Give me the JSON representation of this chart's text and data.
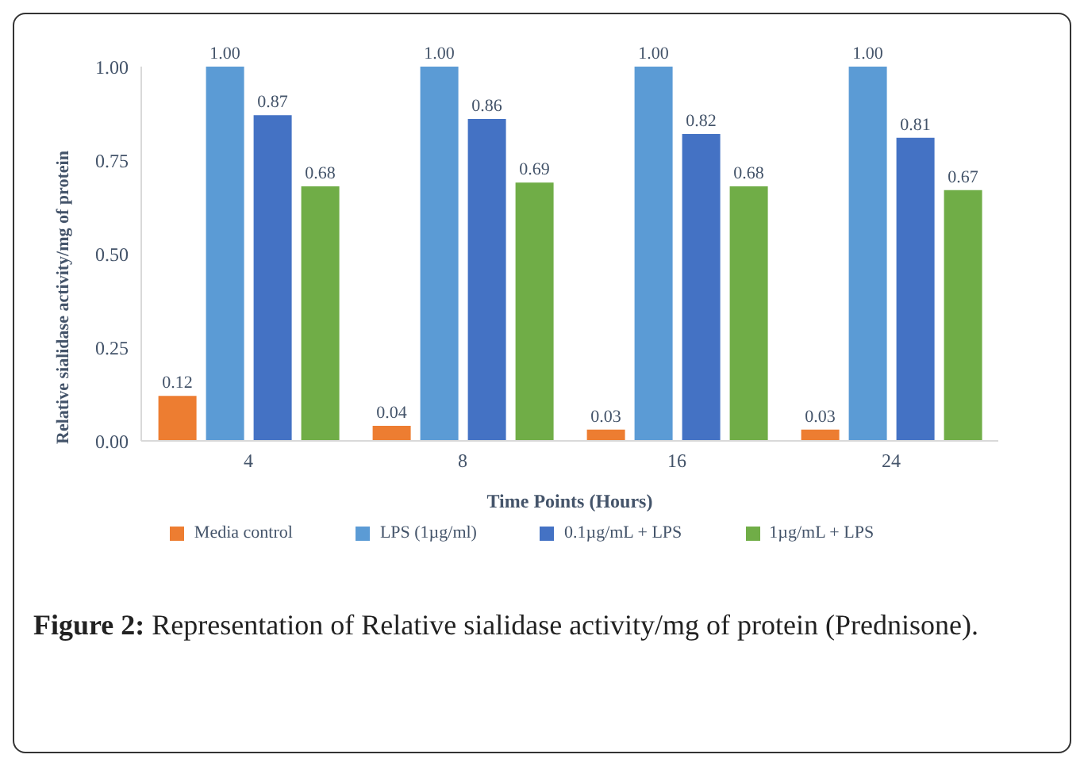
{
  "chart_data": {
    "type": "bar",
    "xlabel": "Time Points (Hours)",
    "ylabel": "Relative sialidase activity/mg of protein",
    "categories": [
      "4",
      "8",
      "16",
      "24"
    ],
    "series": [
      {
        "name": "Media control",
        "color": "#ed7d31",
        "values": [
          0.12,
          0.04,
          0.03,
          0.03
        ],
        "value_labels": [
          "0.12",
          "0.04",
          "0.03",
          "0.03"
        ]
      },
      {
        "name": "LPS (1µg/ml)",
        "color": "#5b9bd5",
        "values": [
          1.0,
          1.0,
          1.0,
          1.0
        ],
        "value_labels": [
          "1.00",
          "1.00",
          "1.00",
          "1.00"
        ]
      },
      {
        "name": "0.1µg/mL + LPS",
        "color": "#4472c4",
        "values": [
          0.87,
          0.86,
          0.82,
          0.81
        ],
        "value_labels": [
          "0.87",
          "0.86",
          "0.82",
          "0.81"
        ]
      },
      {
        "name": "1µg/mL + LPS",
        "color": "#70ad47",
        "values": [
          0.68,
          0.69,
          0.68,
          0.67
        ],
        "value_labels": [
          "0.68",
          "0.69",
          "0.68",
          "0.67"
        ]
      }
    ],
    "ylim": [
      0,
      1
    ],
    "yticks": [
      {
        "value": 0,
        "label": "0.00"
      },
      {
        "value": 0.25,
        "label": "0.25"
      },
      {
        "value": 0.5,
        "label": "0.50"
      },
      {
        "value": 0.75,
        "label": "0.75"
      },
      {
        "value": 1,
        "label": "1.00"
      }
    ],
    "grid": false,
    "legend": "bottom",
    "annotations": [
      "Figure 2: Representation of Relative sialidase activity/mg of protein (Prednisone)."
    ]
  }
}
